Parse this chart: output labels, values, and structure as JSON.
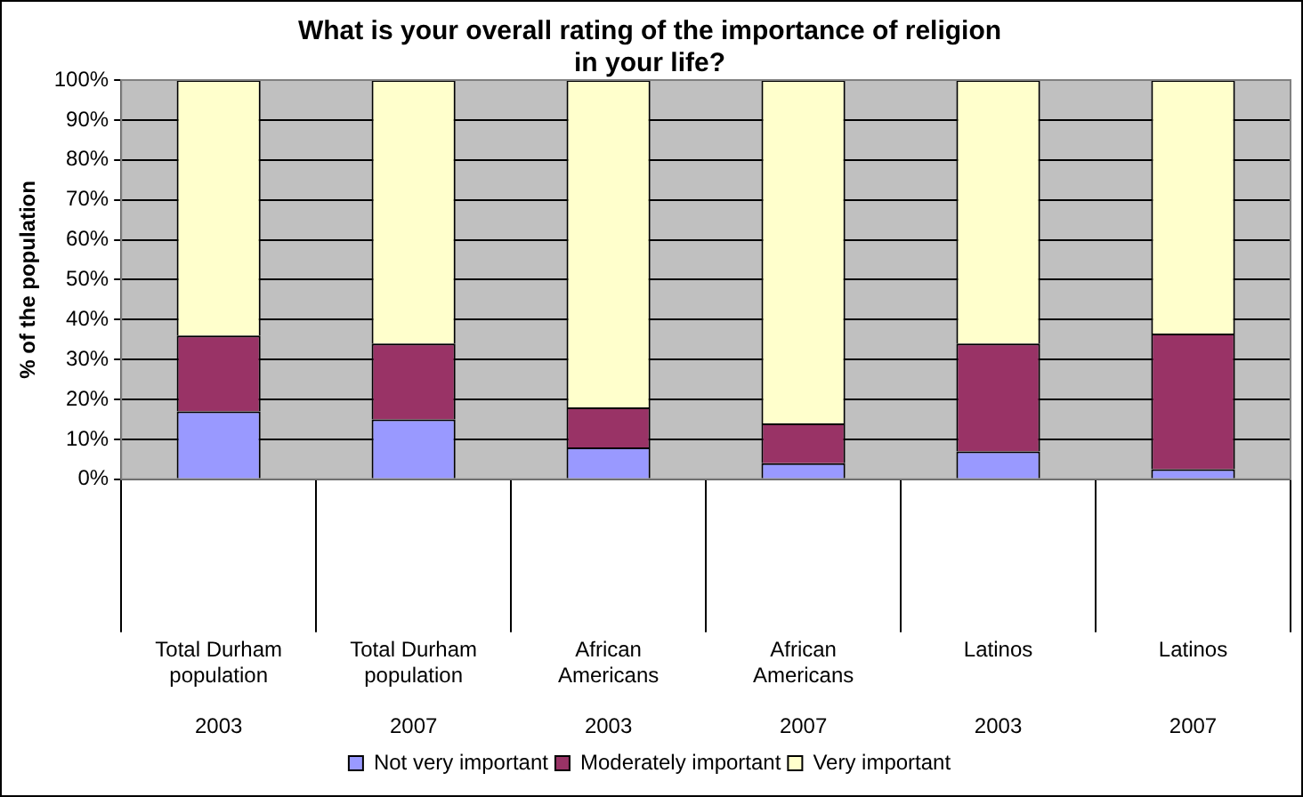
{
  "chart_data": {
    "type": "bar",
    "title": "What is your overall rating of the importance of religion in your life?",
    "ylabel": "% of the population",
    "categories": [
      "Total Durham population\n2003",
      "Total Durham population\n2007",
      "African Americans\n2003",
      "African Americans\n2007",
      "Latinos\n2003",
      "Latinos\n2007"
    ],
    "stacked": true,
    "series": [
      {
        "name": "Not very important",
        "color": "#9999ff",
        "values": [
          17,
          15,
          8,
          4,
          7,
          2.5
        ]
      },
      {
        "name": "Moderately important",
        "color": "#993366",
        "values": [
          19,
          19,
          10,
          10,
          27,
          34
        ]
      },
      {
        "name": "Very important",
        "color": "#ffffcc",
        "values": [
          64,
          66,
          82,
          86,
          66,
          63.5
        ]
      }
    ],
    "ylim": [
      0,
      100
    ],
    "yticks": [
      {
        "value": 0,
        "label": "0%"
      },
      {
        "value": 10,
        "label": "10%"
      },
      {
        "value": 20,
        "label": "20%"
      },
      {
        "value": 30,
        "label": "30%"
      },
      {
        "value": 40,
        "label": "40%"
      },
      {
        "value": 50,
        "label": "50%"
      },
      {
        "value": 60,
        "label": "60%"
      },
      {
        "value": 70,
        "label": "70%"
      },
      {
        "value": 80,
        "label": "80%"
      },
      {
        "value": 90,
        "label": "90%"
      },
      {
        "value": 100,
        "label": "100%"
      }
    ],
    "grid": "y",
    "legend": "bottom"
  }
}
